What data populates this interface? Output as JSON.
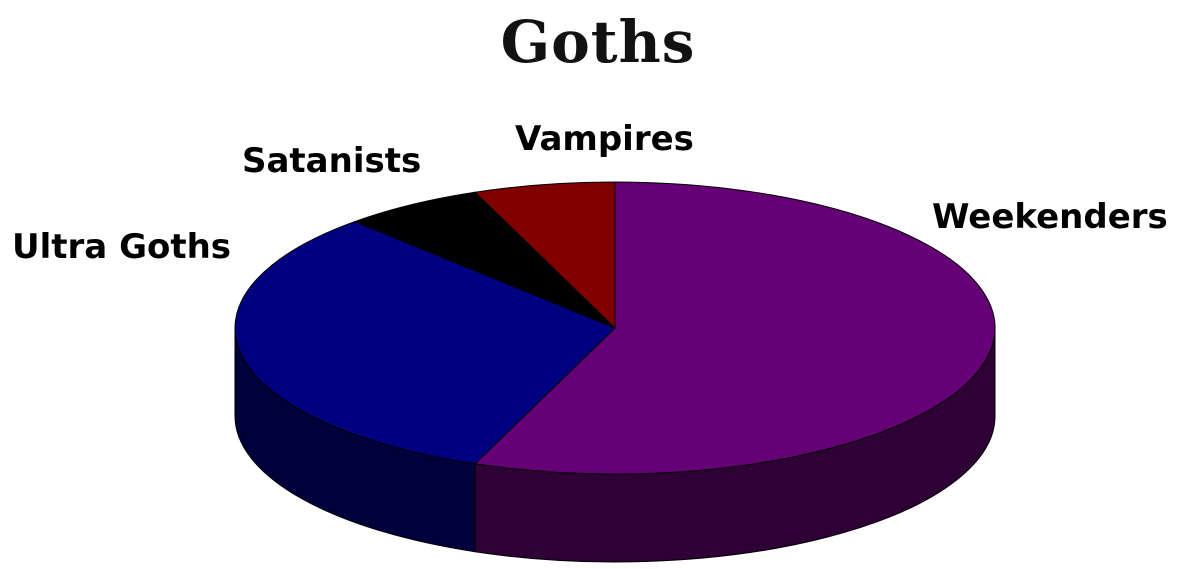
{
  "chart_data": {
    "type": "pie",
    "style": "3d",
    "title": "Goths",
    "start": "top",
    "direction": "clockwise",
    "slices": [
      {
        "label": "Weekenders",
        "value": 56,
        "color": "#660077"
      },
      {
        "label": "Ultra Goths",
        "value": 32,
        "color": "#000080"
      },
      {
        "label": "Satanists",
        "value": 6,
        "color": "#000000"
      },
      {
        "label": "Vampires",
        "value": 6,
        "color": "#800000"
      }
    ]
  }
}
